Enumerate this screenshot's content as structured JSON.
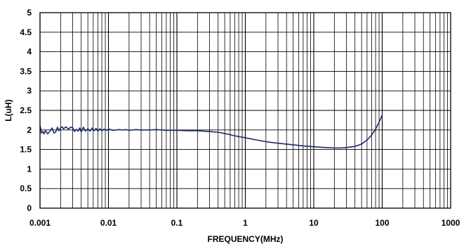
{
  "chart_data": {
    "type": "line",
    "title": "",
    "xlabel": "FREQUENCY(MHz)",
    "ylabel": "L(uH)",
    "xscale": "log",
    "xlim": [
      0.001,
      1000
    ],
    "ylim": [
      0,
      5
    ],
    "xticks": [
      "0.001",
      "0.01",
      "0.1",
      "1",
      "10",
      "100",
      "1000"
    ],
    "yticks": [
      "0",
      "0.5",
      "1",
      "1.5",
      "2",
      "2.5",
      "3",
      "3.5",
      "4",
      "4.5",
      "5"
    ],
    "grid": true,
    "colors": {
      "line": "#1a2a6e",
      "grid": "#000000",
      "background": "#ffffff"
    },
    "series": [
      {
        "x": [
          0.001,
          0.00105,
          0.0011,
          0.00115,
          0.0012,
          0.0013,
          0.0014,
          0.0015,
          0.0016,
          0.0017,
          0.0018,
          0.0019,
          0.002,
          0.0021,
          0.0022,
          0.0024,
          0.0026,
          0.0028,
          0.003,
          0.0032,
          0.0034,
          0.0036,
          0.0038,
          0.004,
          0.0043,
          0.0046,
          0.005,
          0.0054,
          0.0058,
          0.0062,
          0.0066,
          0.007,
          0.0075,
          0.008,
          0.0086,
          0.0093,
          0.01,
          0.012,
          0.014,
          0.016,
          0.018,
          0.02,
          0.025,
          0.03,
          0.04,
          0.05,
          0.07,
          0.1,
          0.15,
          0.2,
          0.3,
          0.4,
          0.5,
          0.7,
          1,
          1.5,
          2,
          3,
          5,
          7,
          10,
          15,
          20,
          25,
          30,
          40,
          50,
          60,
          70,
          80,
          90,
          100
        ],
        "y": [
          2.12,
          1.92,
          1.96,
          1.9,
          1.98,
          1.9,
          1.97,
          2.05,
          1.92,
          1.95,
          2.07,
          1.98,
          2.05,
          2.08,
          2.03,
          2.08,
          2.02,
          2.07,
          2.06,
          1.96,
          2.02,
          1.97,
          2.05,
          1.95,
          2.07,
          1.97,
          2.03,
          1.97,
          2.05,
          1.98,
          2.04,
          1.97,
          2.03,
          1.98,
          2.02,
          1.99,
          2.02,
          1.99,
          2.01,
          2.0,
          2.01,
          1.99,
          2.01,
          2.0,
          2.0,
          2.01,
          1.99,
          1.99,
          1.98,
          1.98,
          1.96,
          1.94,
          1.91,
          1.85,
          1.8,
          1.74,
          1.7,
          1.66,
          1.62,
          1.59,
          1.57,
          1.55,
          1.54,
          1.54,
          1.55,
          1.58,
          1.64,
          1.74,
          1.87,
          2.02,
          2.2,
          2.38
        ]
      }
    ]
  }
}
